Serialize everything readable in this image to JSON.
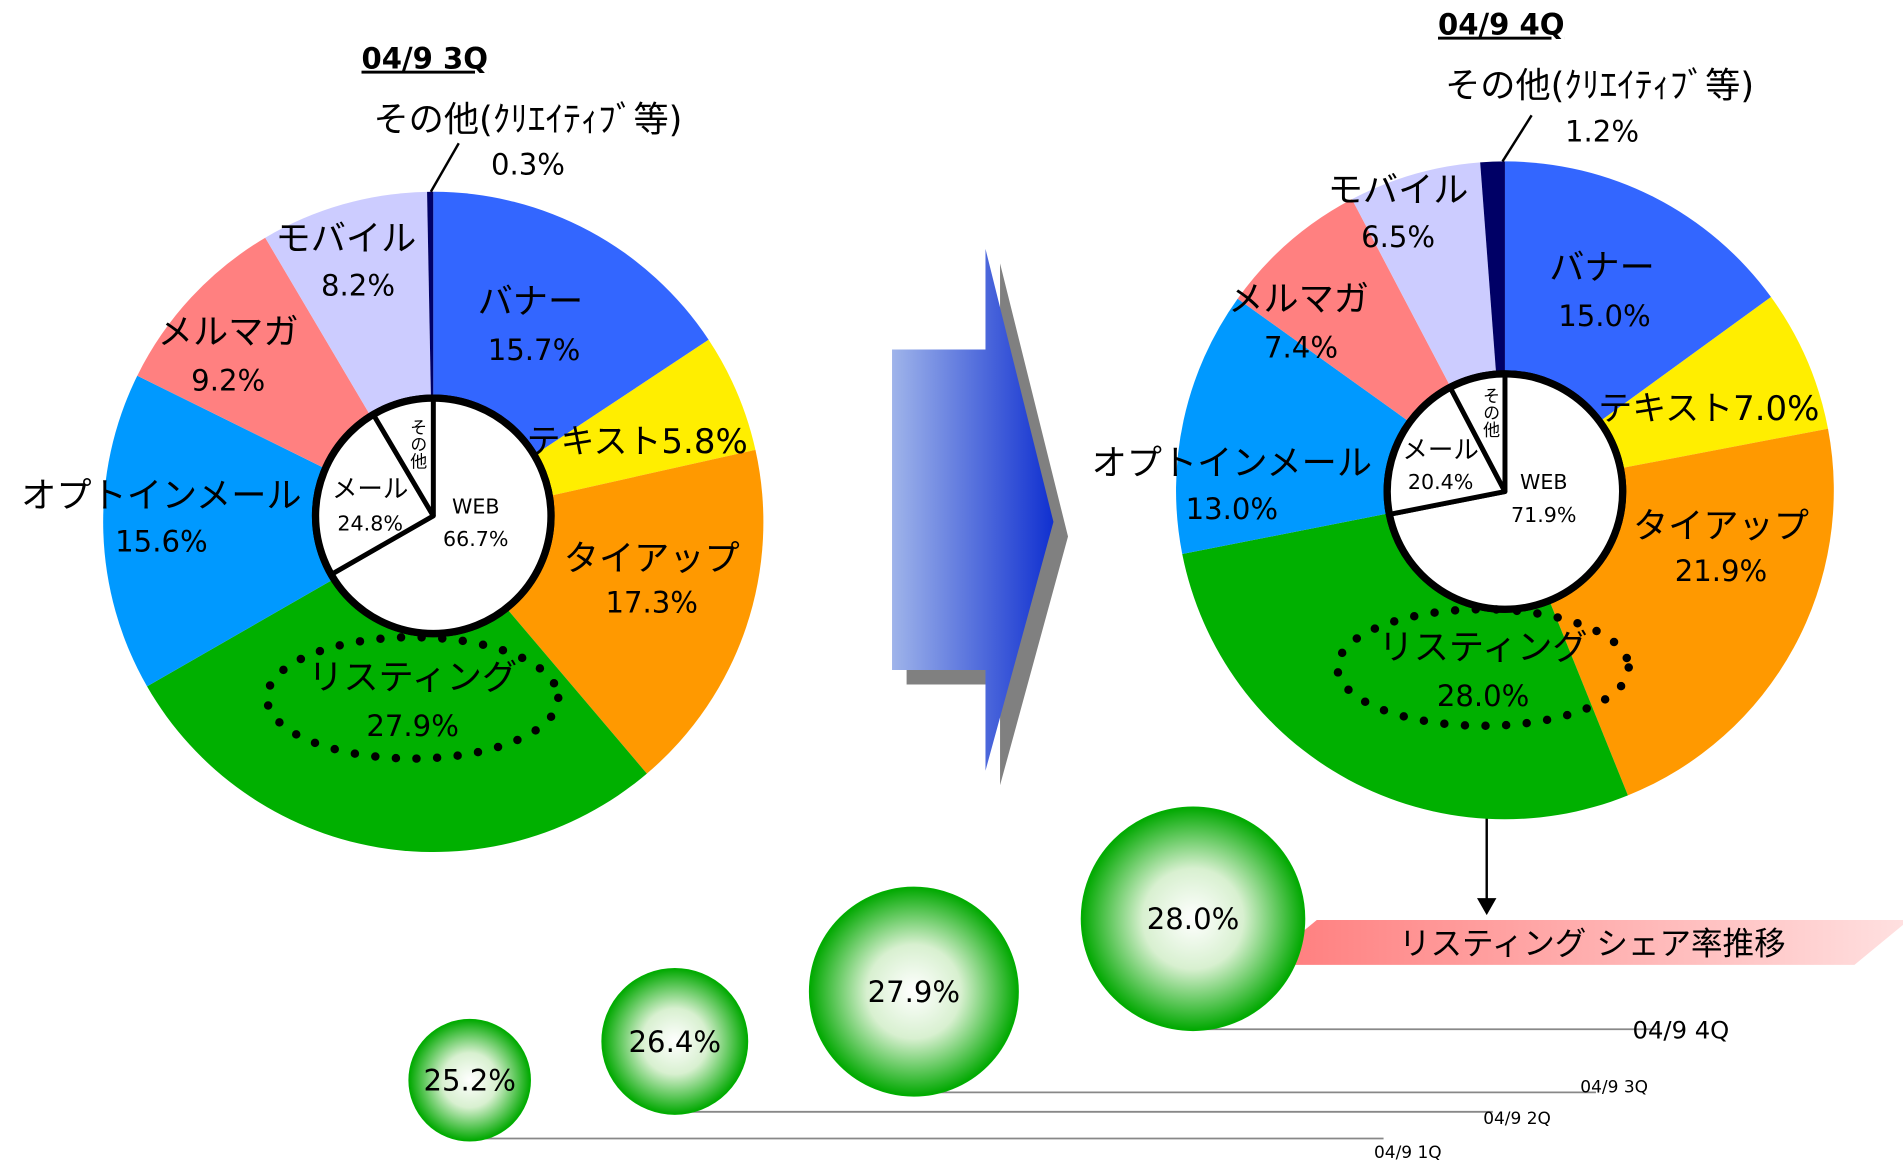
{
  "chart_data": [
    {
      "type": "pie",
      "title": "04/9 3Q",
      "categories": [
        "バナー",
        "テキスト",
        "タイアップ",
        "リスティング",
        "オプトインメール",
        "メルマガ",
        "モバイル",
        "その他(ｸﾘｴｲﾃｨﾌﾞ等)"
      ],
      "values": [
        15.7,
        5.8,
        17.3,
        27.9,
        15.6,
        9.2,
        8.2,
        0.3
      ],
      "value_labels": [
        "15.7%",
        "5.8%",
        "17.3%",
        "27.9%",
        "15.6%",
        "9.2%",
        "8.2%",
        "0.3%"
      ],
      "colors": [
        "#3366ff",
        "#ffee00",
        "#ff9900",
        "#00b000",
        "#0099ff",
        "#ff8080",
        "#ccccff",
        "#000066"
      ],
      "inner": {
        "categories": [
          "WEB",
          "メール",
          "その他"
        ],
        "values": [
          66.7,
          24.8,
          8.5
        ],
        "value_labels": [
          "66.7%",
          "24.8%",
          null
        ]
      }
    },
    {
      "type": "pie",
      "title": "04/9 4Q",
      "categories": [
        "バナー",
        "テキスト",
        "タイアップ",
        "リスティング",
        "オプトインメール",
        "メルマガ",
        "モバイル",
        "その他(ｸﾘｴｲﾃｨﾌﾞ等)"
      ],
      "values": [
        15.0,
        7.0,
        21.9,
        28.0,
        13.0,
        7.4,
        6.5,
        1.2
      ],
      "value_labels": [
        "15.0%",
        "7.0%",
        "21.9%",
        "28.0%",
        "13.0%",
        "7.4%",
        "6.5%",
        "1.2%"
      ],
      "colors": [
        "#3366ff",
        "#ffee00",
        "#ff9900",
        "#00b000",
        "#0099ff",
        "#ff8080",
        "#ccccff",
        "#000066"
      ],
      "inner": {
        "categories": [
          "WEB",
          "メール",
          "その他"
        ],
        "values": [
          71.9,
          20.4,
          7.7
        ],
        "value_labels": [
          "71.9%",
          "20.4%",
          null
        ]
      }
    },
    {
      "type": "bubble",
      "title": "リスティング シェア率推移",
      "categories": [
        "04/9 1Q",
        "04/9 2Q",
        "04/9 3Q",
        "04/9 4Q"
      ],
      "values": [
        25.2,
        26.4,
        27.9,
        28.0
      ],
      "value_labels": [
        "25.2%",
        "26.4%",
        "27.9%",
        "28.0%"
      ],
      "color": "#00b000"
    }
  ]
}
